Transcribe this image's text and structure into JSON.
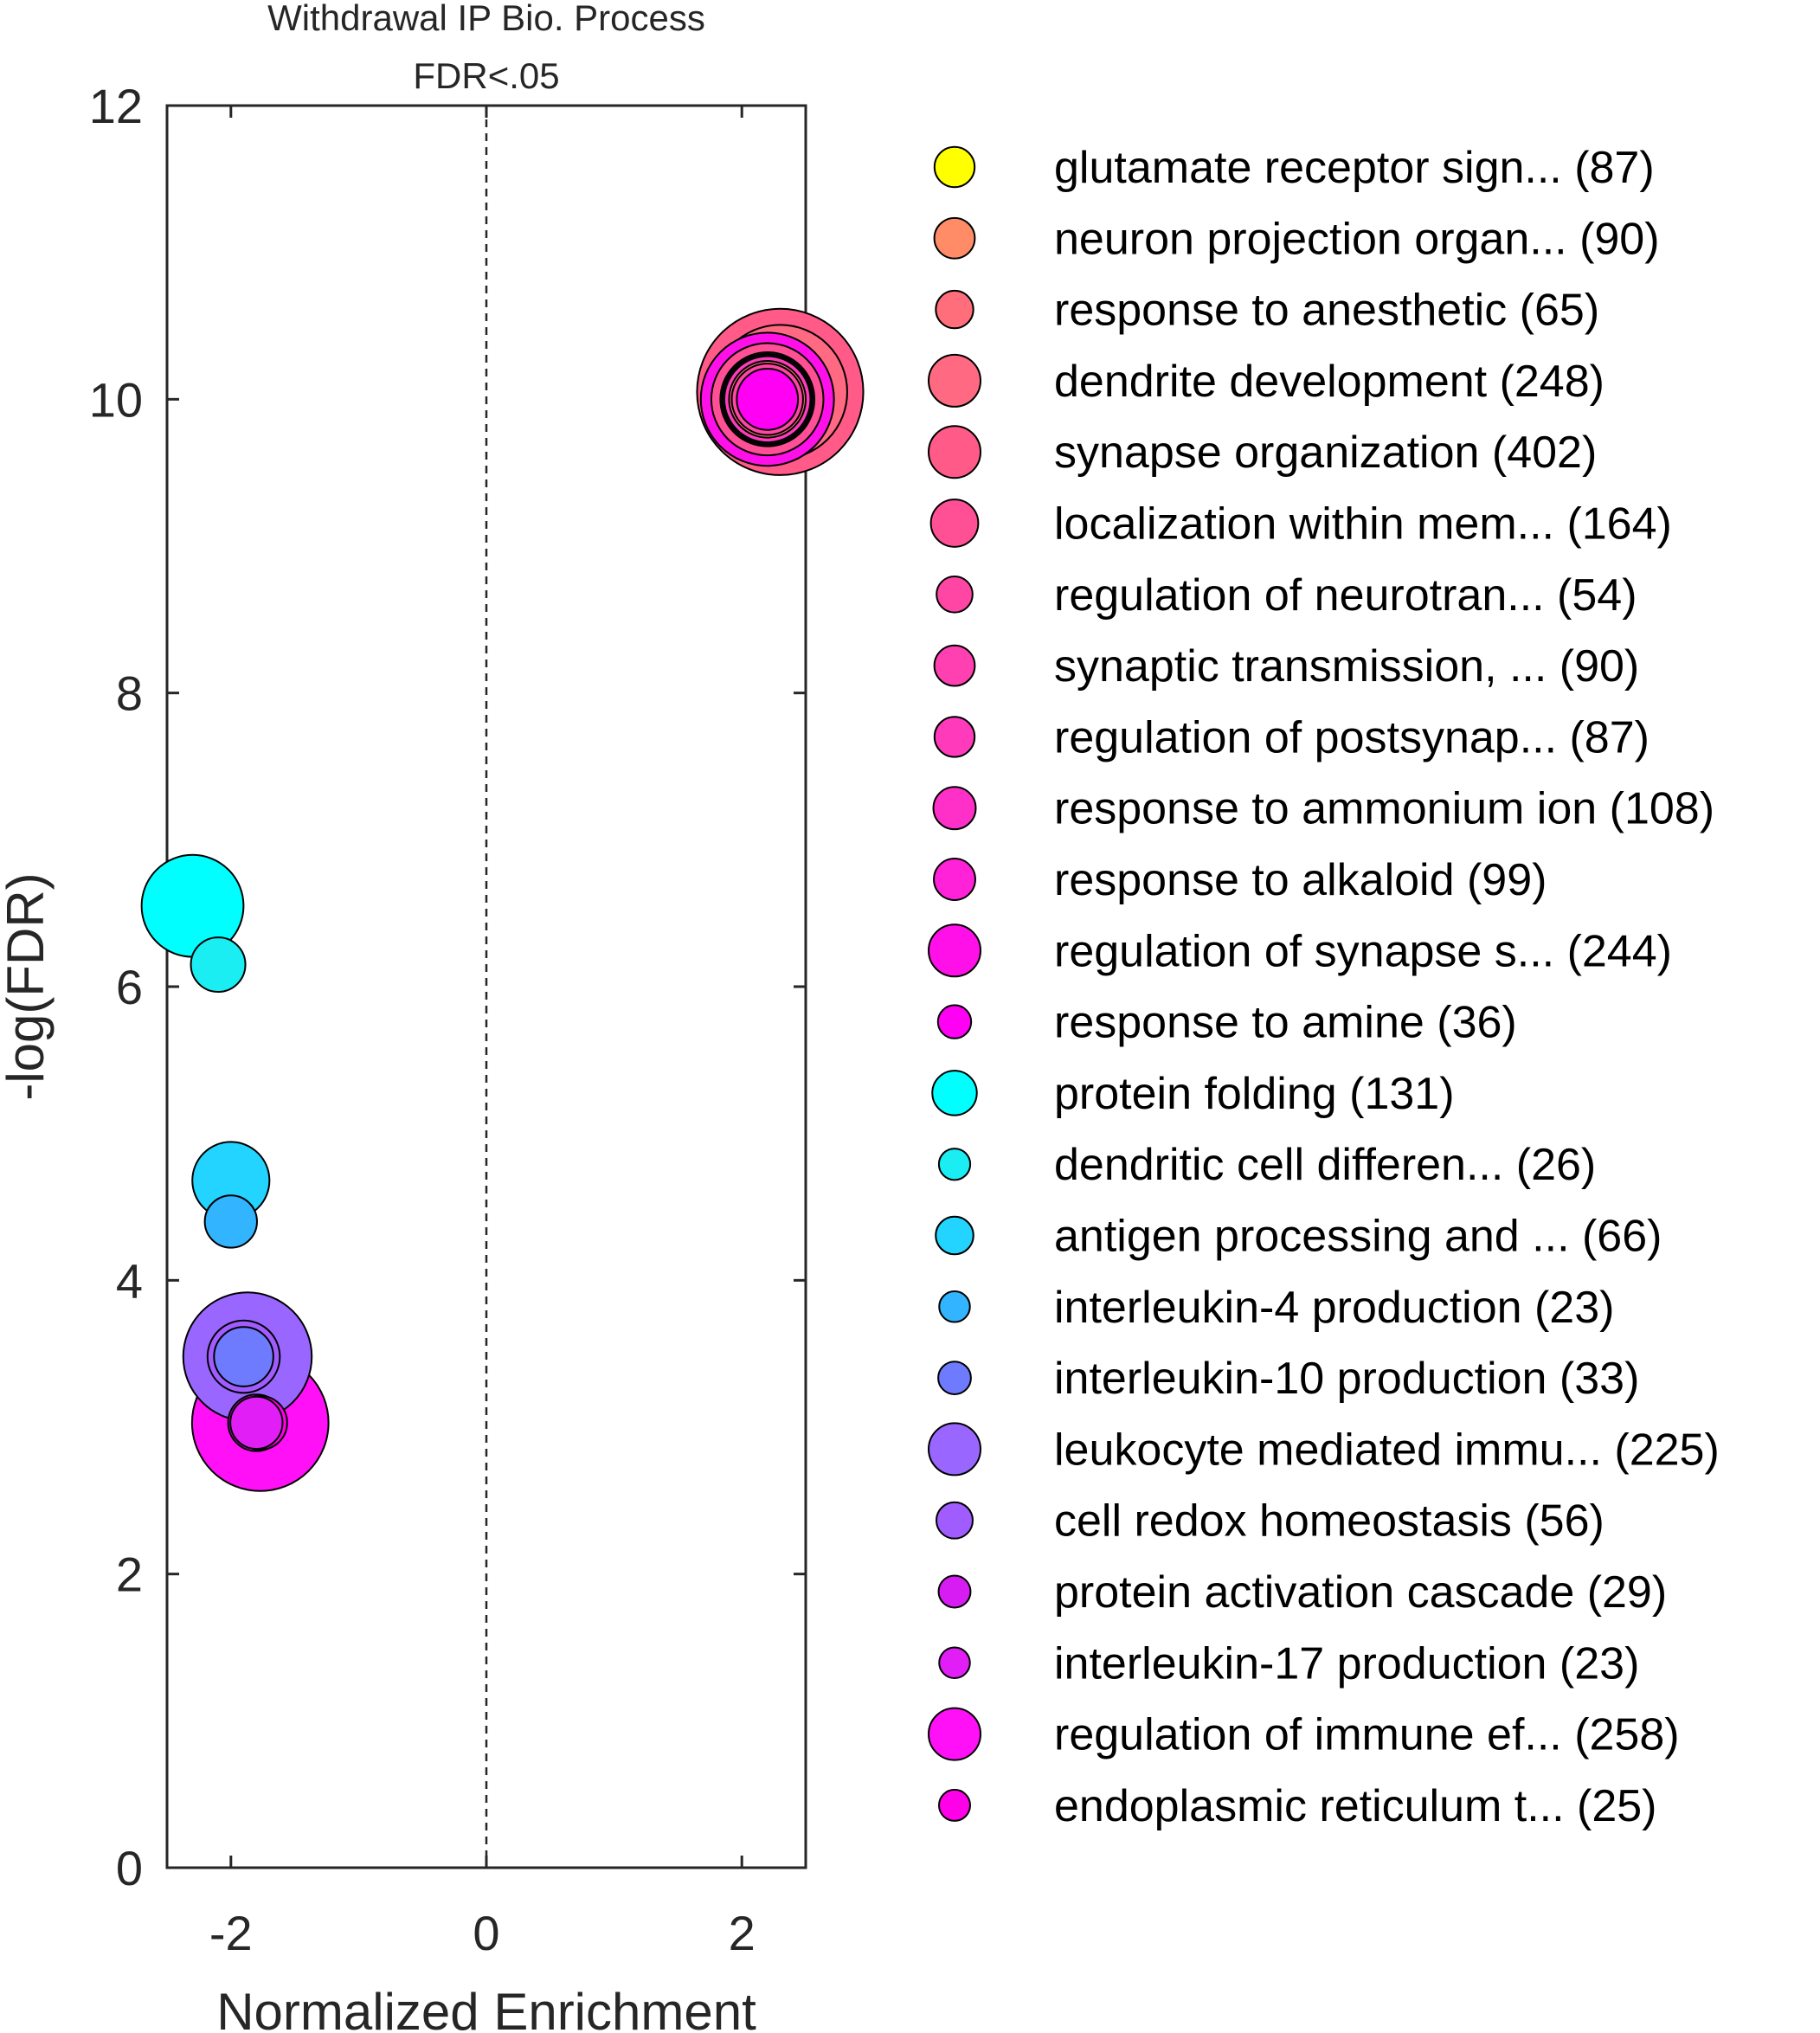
{
  "chart_data": {
    "type": "scatter",
    "title": [
      "Withdrawal IP Bio. Process",
      "FDR<.05"
    ],
    "xlabel": "Normalized Enrichment",
    "ylabel": "-log(FDR)",
    "xlim": [
      -2.5,
      2.5
    ],
    "ylim": [
      0,
      12
    ],
    "xticks": [
      -2,
      0,
      2
    ],
    "yticks": [
      0,
      2,
      4,
      6,
      8,
      10,
      12
    ],
    "x_tick_labels": [
      "-2",
      "0",
      "2"
    ],
    "y_tick_labels": [
      "0",
      "2",
      "4",
      "6",
      "8",
      "10",
      "12"
    ],
    "reference_line": {
      "x": 0,
      "style": "dashed"
    },
    "grid": false,
    "legend_position": "right",
    "size_meaning": "gene set size (count in parentheses)",
    "series": [
      {
        "name": "glutamate receptor sign...",
        "count": "(87)",
        "x": 2.2,
        "y": 10.0,
        "color": "#ffff00"
      },
      {
        "name": "neuron projection organ...",
        "count": "(90)",
        "x": 2.2,
        "y": 10.0,
        "color": "#ff8c66"
      },
      {
        "name": "response to anesthetic",
        "count": "(65)",
        "x": 2.2,
        "y": 10.0,
        "color": "#ff6e7a"
      },
      {
        "name": "dendrite development",
        "count": "(248)",
        "x": 2.3,
        "y": 10.05,
        "color": "#ff6a82"
      },
      {
        "name": "synapse organization",
        "count": "(402)",
        "x": 2.3,
        "y": 10.05,
        "color": "#ff5a88"
      },
      {
        "name": "localization within mem...",
        "count": "(164)",
        "x": 2.2,
        "y": 10.0,
        "color": "#ff4f95"
      },
      {
        "name": "regulation of neurotran...",
        "count": "(54)",
        "x": 2.2,
        "y": 10.0,
        "color": "#ff46a4"
      },
      {
        "name": "synaptic transmission, ...",
        "count": "(90)",
        "x": 2.2,
        "y": 10.0,
        "color": "#ff40b0"
      },
      {
        "name": "regulation of postsynap...",
        "count": "(87)",
        "x": 2.2,
        "y": 10.0,
        "color": "#ff3bbc"
      },
      {
        "name": "response to ammonium ion",
        "count": "(108)",
        "x": 2.2,
        "y": 10.0,
        "color": "#ff30c8"
      },
      {
        "name": "response to alkaloid",
        "count": "(99)",
        "x": 2.2,
        "y": 10.0,
        "color": "#ff22d8"
      },
      {
        "name": "regulation of synapse s...",
        "count": "(244)",
        "x": 2.2,
        "y": 10.0,
        "color": "#ff10e8"
      },
      {
        "name": "response to amine",
        "count": "(36)",
        "x": 2.2,
        "y": 10.0,
        "color": "#ff00f4"
      },
      {
        "name": "protein folding",
        "count": "(131)",
        "x": -2.3,
        "y": 6.55,
        "color": "#00ffff"
      },
      {
        "name": "dendritic cell differen...",
        "count": "(26)",
        "x": -2.1,
        "y": 6.15,
        "color": "#1aeef2"
      },
      {
        "name": "antigen processing and ...",
        "count": "(66)",
        "x": -2.0,
        "y": 4.68,
        "color": "#22d4ff"
      },
      {
        "name": "interleukin-4 production",
        "count": "(23)",
        "x": -2.0,
        "y": 4.4,
        "color": "#33b4ff"
      },
      {
        "name": "interleukin-10 production",
        "count": "(33)",
        "x": -1.9,
        "y": 3.48,
        "color": "#6f7bff"
      },
      {
        "name": "leukocyte mediated immu...",
        "count": "(225)",
        "x": -1.87,
        "y": 3.48,
        "color": "#9966ff"
      },
      {
        "name": "cell redox homeostasis",
        "count": "(56)",
        "x": -1.9,
        "y": 3.48,
        "color": "#a15cff"
      },
      {
        "name": "protein activation cascade",
        "count": "(29)",
        "x": -1.8,
        "y": 3.03,
        "color": "#d61cf2"
      },
      {
        "name": "interleukin-17 production",
        "count": "(23)",
        "x": -1.8,
        "y": 3.03,
        "color": "#e21ef6"
      },
      {
        "name": "regulation of immune ef...",
        "count": "(258)",
        "x": -1.77,
        "y": 3.03,
        "color": "#ff10f6"
      },
      {
        "name": "endoplasmic reticulum t...",
        "count": "(25)",
        "x": -1.77,
        "y": 3.03,
        "color": "#ff00e8"
      }
    ]
  }
}
